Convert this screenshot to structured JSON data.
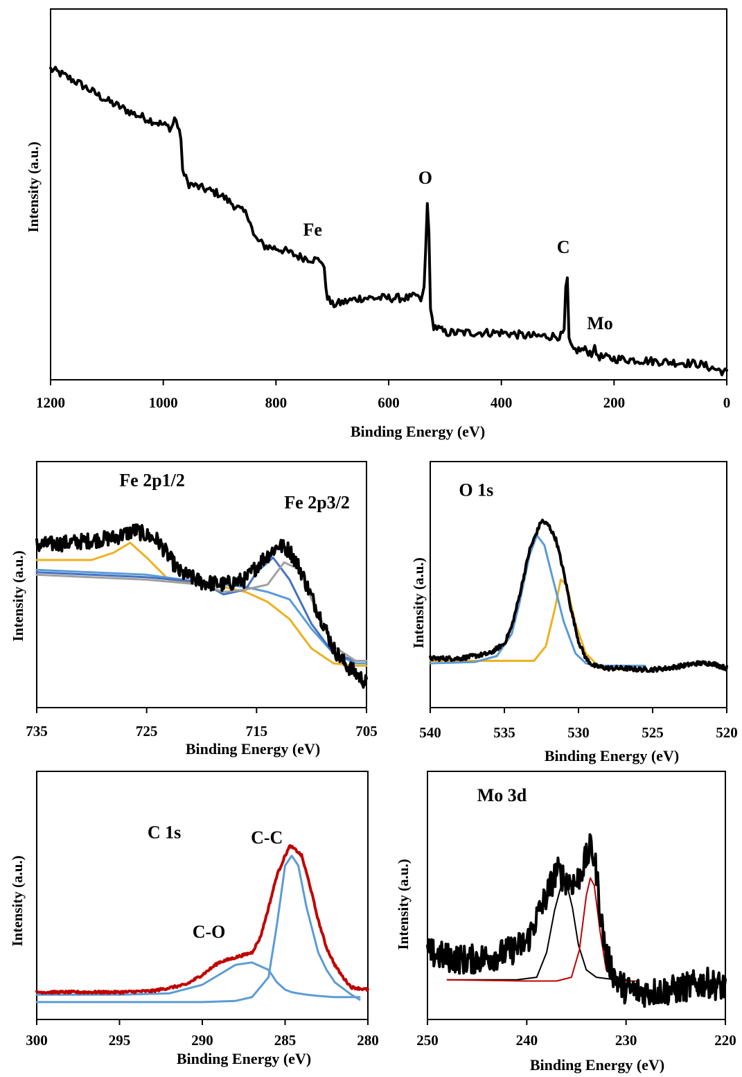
{
  "colors": {
    "black": "#000000",
    "blue": "#5B9BD5",
    "darkblue": "#4472C4",
    "gold": "#EDB120",
    "gray": "#A0A0A0",
    "red": "#C00000"
  },
  "chart_data": [
    {
      "id": "survey",
      "type": "line",
      "xlabel": "Binding Energy (eV)",
      "ylabel": "Intensity (a.u.)",
      "xlim": [
        1200,
        0
      ],
      "ylim": [
        0,
        100
      ],
      "xticks": [
        "1200",
        "1000",
        "800",
        "600",
        "400",
        "200",
        "0"
      ],
      "tick_values": [
        1200,
        1000,
        800,
        600,
        400,
        200,
        0
      ],
      "annotations": [
        {
          "text": "O",
          "x": 535,
          "y": 55
        },
        {
          "text": "Fe",
          "x": 735,
          "y": 40
        },
        {
          "text": "C",
          "x": 290,
          "y": 35
        },
        {
          "text": "Mo",
          "x": 225,
          "y": 13
        }
      ],
      "series": [
        {
          "color": "#000000",
          "width": 4,
          "noise": 1.2,
          "x": [
            1200,
            1185,
            1150,
            1100,
            1050,
            1000,
            985,
            980,
            975,
            970,
            965,
            955,
            900,
            860,
            850,
            845,
            840,
            835,
            820,
            790,
            760,
            730,
            720,
            715,
            712,
            708,
            700,
            650,
            560,
            550,
            545,
            538,
            535,
            533,
            531,
            529,
            526,
            520,
            500,
            450,
            400,
            350,
            300,
            292,
            288,
            286,
            284,
            282,
            280,
            275,
            250,
            240,
            236,
            232,
            228,
            225,
            200,
            150,
            100,
            50,
            0
          ],
          "y": [
            88,
            87,
            84,
            79,
            75,
            72,
            71,
            74,
            72,
            70,
            58,
            55,
            52,
            47,
            46,
            44,
            40,
            39,
            37,
            36,
            34,
            33,
            33,
            31,
            26,
            22,
            20,
            22,
            22,
            23,
            21,
            23,
            30,
            46,
            50,
            46,
            18,
            14,
            12,
            12,
            12,
            11,
            11,
            11,
            13,
            23,
            30,
            25,
            10,
            7,
            7,
            6,
            8,
            6,
            5.5,
            5,
            4.5,
            4,
            3.5,
            3,
            0.5
          ]
        }
      ]
    },
    {
      "id": "fe2p",
      "type": "line",
      "xlabel": "Binding Energy (eV)",
      "ylabel": "Intensity (a.u.)",
      "xlim": [
        735,
        705
      ],
      "ylim": [
        0,
        100
      ],
      "xticks": [
        "735",
        "725",
        "715",
        "705"
      ],
      "tick_values": [
        735,
        725,
        715,
        705
      ],
      "annotations": [
        {
          "text": "Fe 2p1/2",
          "x": 724.5,
          "y": 90
        },
        {
          "text": "Fe 2p3/2",
          "x": 709.5,
          "y": 81
        }
      ],
      "series": [
        {
          "color": "#EDB120",
          "width": 3,
          "x": [
            735,
            732,
            730,
            728,
            726.5,
            725,
            723,
            720,
            718,
            716,
            714,
            712,
            710,
            708,
            706,
            705
          ],
          "y": [
            60,
            60,
            60,
            63,
            67,
            61,
            52,
            50,
            49,
            47,
            43,
            36,
            24,
            18,
            17,
            17
          ]
        },
        {
          "color": "#5B9BD5",
          "width": 3,
          "x": [
            735,
            730,
            725,
            720,
            718,
            716,
            714,
            712,
            710,
            708,
            706,
            705
          ],
          "y": [
            56,
            55,
            54,
            51,
            50,
            49,
            47,
            44,
            32,
            22,
            18,
            18
          ]
        },
        {
          "color": "#4472C4",
          "width": 3,
          "x": [
            735,
            730,
            725,
            720,
            718,
            716,
            715,
            713.5,
            712,
            710,
            708,
            706,
            705
          ],
          "y": [
            55,
            54,
            53,
            51,
            46,
            48,
            55,
            61,
            52,
            34,
            22,
            19,
            19
          ]
        },
        {
          "color": "#A0A0A0",
          "width": 3,
          "x": [
            735,
            730,
            725,
            720,
            718,
            716,
            714,
            712.5,
            711,
            710,
            708,
            706,
            705
          ],
          "y": [
            54,
            53,
            52,
            50,
            47,
            48,
            50,
            59,
            56,
            44,
            25,
            19,
            19
          ]
        },
        {
          "color": "#000000",
          "width": 4,
          "noise": 3.2,
          "x": [
            735,
            732,
            730,
            728,
            726,
            724,
            722,
            720,
            718,
            716,
            714.5,
            713,
            712,
            711,
            710,
            709,
            708,
            707,
            706,
            705
          ],
          "y": [
            66,
            67,
            68,
            69,
            72,
            68,
            55,
            51,
            50,
            52,
            60,
            66,
            64,
            56,
            45,
            35,
            24,
            18,
            14,
            10
          ]
        }
      ]
    },
    {
      "id": "o1s",
      "type": "line",
      "xlabel": "Binding Energy (eV)",
      "ylabel": "Intensity (a.u.)",
      "xlim": [
        540,
        520
      ],
      "ylim": [
        0,
        100
      ],
      "xticks": [
        "540",
        "535",
        "530",
        "525",
        "520"
      ],
      "tick_values": [
        540,
        535,
        530,
        525,
        520
      ],
      "annotations": [
        {
          "text": "O 1s",
          "x": 536.9,
          "y": 86
        }
      ],
      "series": [
        {
          "color": "#EDB120",
          "width": 3,
          "x": [
            540,
            535,
            533,
            532.2,
            531.6,
            531.2,
            530.8,
            530.2,
            529.5,
            528.5,
            527,
            526
          ],
          "y": [
            19,
            19,
            19,
            25,
            40,
            52,
            50,
            34,
            22,
            16,
            15.5,
            15.5
          ]
        },
        {
          "color": "#5B9BD5",
          "width": 3,
          "x": [
            540,
            537,
            535.5,
            534.5,
            534,
            533.3,
            532.8,
            532.3,
            531.8,
            531,
            530.2,
            529.5,
            528.5,
            527,
            525.5
          ],
          "y": [
            18,
            18.5,
            21,
            30,
            42,
            62,
            70,
            66,
            54,
            35,
            22,
            18,
            17,
            17,
            17
          ]
        },
        {
          "color": "#000000",
          "width": 4,
          "noise": 0.9,
          "x": [
            540,
            538,
            536,
            535,
            534.5,
            534,
            533.3,
            532.5,
            532,
            531.5,
            531,
            530.5,
            530,
            529.5,
            529,
            528,
            527,
            526,
            525,
            524,
            523,
            522,
            521,
            520
          ],
          "y": [
            20,
            20,
            22,
            26,
            33,
            45,
            64,
            76,
            74,
            68,
            55,
            40,
            27,
            20,
            17,
            16,
            16,
            15.5,
            15.5,
            16,
            17,
            18,
            18,
            16
          ]
        }
      ]
    },
    {
      "id": "c1s",
      "type": "line",
      "xlabel": "Binding Energy (eV)",
      "ylabel": "Intensity (a.u.)",
      "xlim": [
        300,
        280
      ],
      "ylim": [
        0,
        100
      ],
      "xticks": [
        "300",
        "295",
        "290",
        "285",
        "280"
      ],
      "tick_values": [
        300,
        295,
        290,
        285,
        280
      ],
      "annotations": [
        {
          "text": "C 1s",
          "x": 292.3,
          "y": 73
        },
        {
          "text": "C-C",
          "x": 286.1,
          "y": 71
        },
        {
          "text": "C-O",
          "x": 289.6,
          "y": 33
        }
      ],
      "series": [
        {
          "color": "#5B9BD5",
          "width": 3,
          "x": [
            300,
            295,
            292,
            290,
            289,
            288,
            287,
            286,
            285.5,
            285,
            284.6,
            284.2,
            283.7,
            283,
            282,
            281,
            280.5
          ],
          "y": [
            10,
            10,
            10.5,
            14,
            18,
            22,
            23,
            20,
            15,
            12,
            11,
            10.5,
            10,
            9.5,
            9,
            9,
            9
          ]
        },
        {
          "color": "#5B9BD5",
          "width": 3,
          "x": [
            300,
            290,
            288,
            287,
            286,
            285.5,
            285,
            284.6,
            284.2,
            283.7,
            283,
            282.5,
            282,
            281,
            280.5
          ],
          "y": [
            7,
            7,
            7.5,
            9,
            17,
            38,
            62,
            66,
            62,
            45,
            27,
            20,
            15,
            10,
            8
          ]
        },
        {
          "color": "#C00000",
          "width": 4,
          "noise": 0.5,
          "x": [
            300,
            298,
            295,
            293,
            291,
            290,
            289,
            288,
            287,
            286.5,
            286,
            285.5,
            285,
            284.7,
            284.3,
            284,
            283.5,
            283,
            282.5,
            282,
            281.5,
            281,
            280
          ],
          "y": [
            11,
            11,
            11,
            11.5,
            14,
            18,
            23,
            25,
            27,
            33,
            45,
            58,
            66,
            70,
            68,
            66,
            54,
            40,
            29,
            22,
            17,
            13,
            12
          ]
        }
      ]
    },
    {
      "id": "mo3d",
      "type": "line",
      "xlabel": "Binding Energy (eV)",
      "ylabel": "Intensity (a.u.)",
      "xlim": [
        250,
        220
      ],
      "ylim": [
        0,
        100
      ],
      "xticks": [
        "250",
        "240",
        "230",
        "220"
      ],
      "tick_values": [
        250,
        240,
        230,
        220
      ],
      "annotations": [
        {
          "text": "Mo 3d",
          "x": 242.5,
          "y": 88
        }
      ],
      "series": [
        {
          "color": "#000000",
          "width": 2,
          "x": [
            248,
            244,
            241,
            239,
            238,
            237.2,
            236.6,
            236,
            235.4,
            234.8,
            234,
            233,
            231,
            230
          ],
          "y": [
            16,
            16,
            16,
            17,
            27,
            44,
            53,
            55,
            45,
            30,
            20,
            17,
            16,
            16
          ]
        },
        {
          "color": "#C00000",
          "width": 2,
          "x": [
            248,
            240,
            237,
            235.5,
            234.7,
            234,
            233.6,
            233.2,
            232.6,
            232,
            231,
            230,
            229
          ],
          "y": [
            16,
            15.5,
            15.5,
            17,
            28,
            50,
            57,
            54,
            35,
            20,
            16,
            15.5,
            15.5
          ]
        },
        {
          "color": "#000000",
          "width": 4,
          "noise": 6,
          "x": [
            250,
            248,
            246,
            244,
            242,
            240,
            239,
            238,
            237,
            236,
            235,
            234,
            233.5,
            233,
            232.5,
            232,
            231,
            230,
            228,
            225,
            222,
            220
          ],
          "y": [
            27,
            25,
            24,
            25,
            27,
            31,
            41,
            50,
            60,
            56,
            55,
            65,
            70,
            60,
            40,
            26,
            16,
            12,
            11,
            12,
            15,
            13
          ]
        }
      ]
    }
  ]
}
